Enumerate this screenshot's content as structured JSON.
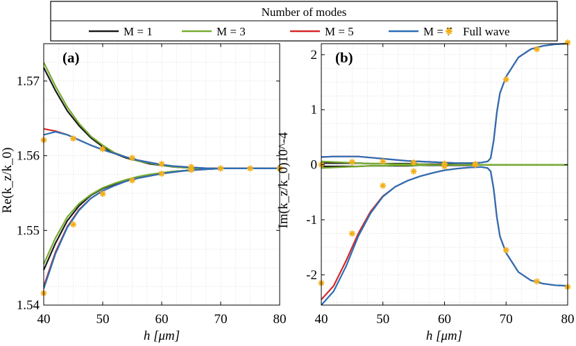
{
  "legend": {
    "title": "Number of modes",
    "entries": [
      {
        "label": "M = 1",
        "color": "#1a1a1a",
        "kind": "line"
      },
      {
        "label": "M = 3",
        "color": "#77ac30",
        "kind": "line"
      },
      {
        "label": "M = 5",
        "color": "#d62728",
        "kind": "line"
      },
      {
        "label": "M = 7",
        "color": "#2b6fb6",
        "kind": "line"
      },
      {
        "label": "Full wave",
        "color": "#f2b01e",
        "kind": "marker"
      }
    ]
  },
  "chart_data": [
    {
      "panel": "(a)",
      "type": "line",
      "xlabel": "h [μm]",
      "ylabel": "Re(k_z/k_0)",
      "xlim": [
        40,
        80
      ],
      "ylim": [
        1.54,
        1.575
      ],
      "xticks": [
        40,
        50,
        60,
        70,
        80
      ],
      "yticks": [
        1.54,
        1.55,
        1.56,
        1.57
      ],
      "ytick_labels": [
        "1.54",
        "1.55",
        "1.56",
        "1.57"
      ],
      "grid": true,
      "x": [
        40,
        42,
        44,
        46,
        48,
        50,
        52,
        54,
        56,
        58,
        60,
        62,
        64,
        66,
        68,
        70,
        72,
        74,
        76,
        78,
        80
      ],
      "series": [
        {
          "name": "M = 1",
          "branch": "upper",
          "values": [
            1.5718,
            1.5687,
            1.566,
            1.564,
            1.5624,
            1.5612,
            1.5603,
            1.5597,
            1.5593,
            1.5589,
            1.5587,
            1.5585,
            1.5584,
            1.5583,
            1.5583,
            1.5583,
            1.5583,
            1.5583,
            1.5583,
            1.5583,
            1.5583
          ]
        },
        {
          "name": "M = 1",
          "branch": "lower",
          "values": [
            1.5447,
            1.5483,
            1.5513,
            1.5533,
            1.5547,
            1.5556,
            1.5562,
            1.5567,
            1.5571,
            1.5574,
            1.5577,
            1.5579,
            1.558,
            1.5582,
            1.5582,
            1.5583,
            1.5583,
            1.5583,
            1.5583,
            1.5583,
            1.5583
          ]
        },
        {
          "name": "M = 3",
          "branch": "upper",
          "values": [
            1.5725,
            1.5693,
            1.5665,
            1.5643,
            1.5626,
            1.5614,
            1.5604,
            1.5598,
            1.5593,
            1.559,
            1.5587,
            1.5585,
            1.5584,
            1.5583,
            1.5583,
            1.5583,
            1.5583,
            1.5583,
            1.5583,
            1.5583,
            1.5583
          ]
        },
        {
          "name": "M = 3",
          "branch": "lower",
          "values": [
            1.5455,
            1.549,
            1.5518,
            1.5536,
            1.5548,
            1.5557,
            1.5563,
            1.5568,
            1.5572,
            1.5575,
            1.5577,
            1.5579,
            1.558,
            1.5582,
            1.5582,
            1.5583,
            1.5583,
            1.5583,
            1.5583,
            1.5583,
            1.5583
          ]
        },
        {
          "name": "M = 5",
          "branch": "upper",
          "values": [
            1.5636,
            1.5633,
            1.5628,
            1.5621,
            1.5614,
            1.5608,
            1.5603,
            1.5598,
            1.5594,
            1.5591,
            1.5588,
            1.5586,
            1.5585,
            1.5584,
            1.5583,
            1.5583,
            1.5583,
            1.5583,
            1.5583,
            1.5583,
            1.5583
          ]
        },
        {
          "name": "M = 5",
          "branch": "lower",
          "values": [
            1.5425,
            1.5471,
            1.5505,
            1.5528,
            1.5543,
            1.5553,
            1.556,
            1.5566,
            1.557,
            1.5573,
            1.5576,
            1.5578,
            1.558,
            1.5581,
            1.5582,
            1.5583,
            1.5583,
            1.5583,
            1.5583,
            1.5583,
            1.5583
          ]
        },
        {
          "name": "M = 7",
          "branch": "upper",
          "values": [
            1.5628,
            1.5632,
            1.5628,
            1.5621,
            1.5614,
            1.5608,
            1.5603,
            1.5598,
            1.5594,
            1.5591,
            1.5588,
            1.5586,
            1.5585,
            1.5584,
            1.5583,
            1.5583,
            1.5583,
            1.5583,
            1.5583,
            1.5583,
            1.5583
          ]
        },
        {
          "name": "M = 7",
          "branch": "lower",
          "values": [
            1.5422,
            1.5469,
            1.5504,
            1.5527,
            1.5543,
            1.5553,
            1.556,
            1.5566,
            1.557,
            1.5573,
            1.5576,
            1.5578,
            1.558,
            1.5581,
            1.5582,
            1.5583,
            1.5583,
            1.5583,
            1.5583,
            1.5583,
            1.5583
          ]
        }
      ],
      "markers": {
        "name": "Full wave",
        "x": [
          40,
          45,
          50,
          55,
          60,
          65,
          70,
          75,
          80,
          40,
          45,
          50,
          55,
          60,
          65
        ],
        "y": [
          1.5621,
          1.5623,
          1.5609,
          1.5597,
          1.5589,
          1.5585,
          1.5583,
          1.5583,
          1.5583,
          1.5416,
          1.5508,
          1.5549,
          1.5567,
          1.5576,
          1.5581
        ]
      }
    },
    {
      "panel": "(b)",
      "type": "line",
      "xlabel": "h [μm]",
      "ylabel": "Im(k_z/k_0)10^-4",
      "xlim": [
        40,
        80
      ],
      "ylim": [
        -2.55,
        2.2
      ],
      "xticks": [
        40,
        50,
        60,
        70,
        80
      ],
      "yticks": [
        -2,
        -1,
        0,
        1,
        2
      ],
      "ytick_labels": [
        "-2",
        "-1",
        "0",
        "1",
        "2"
      ],
      "grid": true,
      "x": [
        40,
        42,
        44,
        46,
        48,
        50,
        52,
        54,
        56,
        58,
        60,
        62,
        64,
        66,
        67,
        67.5,
        68,
        68.5,
        69,
        70,
        72,
        74,
        76,
        78,
        80
      ],
      "series": [
        {
          "name": "M = 1",
          "branch": "upper",
          "values": [
            0.03,
            0.03,
            0.03,
            0.03,
            0.02,
            0.02,
            0.02,
            0.02,
            0.01,
            0.01,
            0.01,
            0.01,
            0.01,
            0.0,
            0.0,
            0.0,
            0.0,
            0.0,
            0.0,
            0.0,
            0.0,
            0.0,
            0.0,
            0.0,
            0.0
          ]
        },
        {
          "name": "M = 1",
          "branch": "lower",
          "values": [
            -0.03,
            -0.03,
            -0.03,
            -0.03,
            -0.02,
            -0.02,
            -0.02,
            -0.02,
            -0.01,
            -0.01,
            -0.01,
            -0.01,
            -0.01,
            0.0,
            0.0,
            0.0,
            0.0,
            0.0,
            0.0,
            0.0,
            0.0,
            0.0,
            0.0,
            0.0,
            0.0
          ]
        },
        {
          "name": "M = 3",
          "branch": "upper",
          "values": [
            0.06,
            0.05,
            0.04,
            0.03,
            0.02,
            0.02,
            0.01,
            0.01,
            0.01,
            0.0,
            0.0,
            0.0,
            0.0,
            0.0,
            0.0,
            0.0,
            0.0,
            0.0,
            0.0,
            0.0,
            0.0,
            0.0,
            0.0,
            0.0,
            0.0
          ]
        },
        {
          "name": "M = 3",
          "branch": "lower",
          "values": [
            -0.06,
            -0.05,
            -0.04,
            -0.03,
            -0.02,
            -0.02,
            -0.01,
            -0.01,
            -0.01,
            0.0,
            0.0,
            0.0,
            0.0,
            0.0,
            0.0,
            0.0,
            0.0,
            0.0,
            0.0,
            0.0,
            0.0,
            0.0,
            0.0,
            0.0,
            0.0
          ]
        },
        {
          "name": "M = 5",
          "branch": "upper",
          "values": [
            0.14,
            0.15,
            0.15,
            0.15,
            0.13,
            0.11,
            0.09,
            0.07,
            0.06,
            0.05,
            0.04,
            0.03,
            0.03,
            0.04,
            0.06,
            0.12,
            0.45,
            0.95,
            1.3,
            1.6,
            1.95,
            2.1,
            2.16,
            2.19,
            2.2
          ]
        },
        {
          "name": "M = 5",
          "branch": "lower",
          "values": [
            -2.45,
            -2.2,
            -1.75,
            -1.25,
            -0.85,
            -0.57,
            -0.4,
            -0.29,
            -0.21,
            -0.15,
            -0.1,
            -0.07,
            -0.05,
            -0.04,
            -0.06,
            -0.12,
            -0.45,
            -0.95,
            -1.3,
            -1.6,
            -1.95,
            -2.1,
            -2.16,
            -2.19,
            -2.2
          ]
        },
        {
          "name": "M = 7",
          "branch": "upper",
          "values": [
            0.14,
            0.15,
            0.15,
            0.15,
            0.13,
            0.11,
            0.09,
            0.07,
            0.06,
            0.05,
            0.04,
            0.03,
            0.03,
            0.04,
            0.06,
            0.12,
            0.45,
            0.95,
            1.3,
            1.6,
            1.95,
            2.1,
            2.16,
            2.19,
            2.2
          ]
        },
        {
          "name": "M = 7",
          "branch": "lower",
          "values": [
            -2.55,
            -2.3,
            -1.85,
            -1.3,
            -0.88,
            -0.58,
            -0.4,
            -0.29,
            -0.21,
            -0.15,
            -0.1,
            -0.07,
            -0.05,
            -0.04,
            -0.06,
            -0.12,
            -0.45,
            -0.95,
            -1.3,
            -1.6,
            -1.95,
            -2.1,
            -2.16,
            -2.19,
            -2.2
          ]
        }
      ],
      "markers": {
        "name": "Full wave",
        "x": [
          40,
          45,
          50,
          55,
          60,
          65,
          70,
          75,
          80,
          40,
          45,
          50,
          55,
          60,
          65,
          70,
          75,
          80
        ],
        "y": [
          0.0,
          0.05,
          0.06,
          0.04,
          0.02,
          0.01,
          1.55,
          2.1,
          2.22,
          -2.15,
          -1.25,
          -0.38,
          -0.12,
          -0.03,
          0.0,
          -1.55,
          -2.12,
          -2.22
        ]
      }
    }
  ]
}
